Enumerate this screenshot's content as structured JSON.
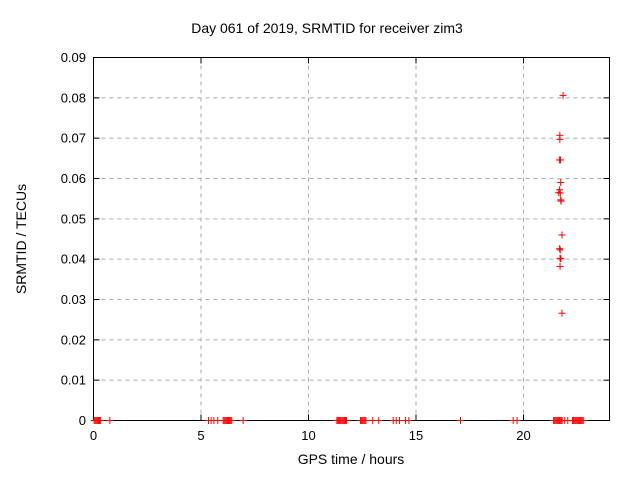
{
  "title": "Day 061 of 2019, SRMTID for receiver zim3",
  "chart_data": {
    "type": "scatter",
    "title": "Day 061 of 2019, SRMTID for receiver zim3",
    "xlabel": "GPS time / hours",
    "ylabel": "SRMTID / TECUs",
    "xlim": [
      0,
      24
    ],
    "ylim": [
      0,
      0.09
    ],
    "grid": true,
    "legend": "none",
    "marker": "plus",
    "marker_color": "#ff0000",
    "grid_color": "#aaaaaa",
    "axis_color": "#000000",
    "xticks": [
      {
        "v": 0,
        "label": "0"
      },
      {
        "v": 5,
        "label": "5"
      },
      {
        "v": 10,
        "label": "10"
      },
      {
        "v": 15,
        "label": "15"
      },
      {
        "v": 20,
        "label": "20"
      }
    ],
    "yticks": [
      {
        "v": 0,
        "label": "0"
      },
      {
        "v": 0.01,
        "label": "0.01"
      },
      {
        "v": 0.02,
        "label": "0.02"
      },
      {
        "v": 0.03,
        "label": "0.03"
      },
      {
        "v": 0.04,
        "label": "0.04"
      },
      {
        "v": 0.05,
        "label": "0.05"
      },
      {
        "v": 0.06,
        "label": "0.06"
      },
      {
        "v": 0.07,
        "label": "0.07"
      },
      {
        "v": 0.08,
        "label": "0.08"
      },
      {
        "v": 0.09,
        "label": "0.09"
      }
    ],
    "series": [
      {
        "name": "SRMTID",
        "points": [
          [
            21.84,
            0.0806
          ],
          [
            21.69,
            0.0707
          ],
          [
            21.69,
            0.0697
          ],
          [
            21.67,
            0.0646
          ],
          [
            21.72,
            0.0646
          ],
          [
            21.73,
            0.059
          ],
          [
            21.68,
            0.0572
          ],
          [
            21.64,
            0.0565
          ],
          [
            21.71,
            0.0564
          ],
          [
            21.73,
            0.0547
          ],
          [
            21.75,
            0.0544
          ],
          [
            21.79,
            0.046
          ],
          [
            21.68,
            0.0426
          ],
          [
            21.71,
            0.0423
          ],
          [
            21.7,
            0.0402
          ],
          [
            21.74,
            0.0401
          ],
          [
            21.7,
            0.0382
          ],
          [
            21.79,
            0.0266
          ],
          [
            0.03,
            0
          ],
          [
            0.08,
            0
          ],
          [
            0.13,
            0
          ],
          [
            0.18,
            0
          ],
          [
            0.23,
            0
          ],
          [
            0.28,
            0
          ],
          [
            0.33,
            0
          ],
          [
            0.76,
            0
          ],
          [
            5.35,
            0
          ],
          [
            5.47,
            0
          ],
          [
            5.6,
            0
          ],
          [
            5.78,
            0
          ],
          [
            6.03,
            0
          ],
          [
            6.08,
            0
          ],
          [
            6.13,
            0
          ],
          [
            6.18,
            0
          ],
          [
            6.23,
            0
          ],
          [
            6.28,
            0
          ],
          [
            6.33,
            0
          ],
          [
            6.38,
            0
          ],
          [
            6.43,
            0
          ],
          [
            6.96,
            0
          ],
          [
            11.32,
            0
          ],
          [
            11.37,
            0
          ],
          [
            11.42,
            0
          ],
          [
            11.47,
            0
          ],
          [
            11.52,
            0
          ],
          [
            11.57,
            0
          ],
          [
            11.62,
            0
          ],
          [
            11.67,
            0
          ],
          [
            11.72,
            0
          ],
          [
            11.77,
            0
          ],
          [
            12.42,
            0
          ],
          [
            12.47,
            0
          ],
          [
            12.52,
            0
          ],
          [
            12.57,
            0
          ],
          [
            12.62,
            0
          ],
          [
            12.67,
            0
          ],
          [
            12.99,
            0
          ],
          [
            13.27,
            0
          ],
          [
            13.94,
            0
          ],
          [
            14.08,
            0
          ],
          [
            14.23,
            0
          ],
          [
            14.51,
            0
          ],
          [
            14.67,
            0
          ],
          [
            17.07,
            0
          ],
          [
            19.52,
            0
          ],
          [
            19.7,
            0
          ],
          [
            21.4,
            0
          ],
          [
            21.45,
            0
          ],
          [
            21.5,
            0
          ],
          [
            21.55,
            0
          ],
          [
            21.6,
            0
          ],
          [
            21.65,
            0
          ],
          [
            21.7,
            0
          ],
          [
            21.75,
            0
          ],
          [
            21.8,
            0
          ],
          [
            21.92,
            0
          ],
          [
            22.06,
            0
          ],
          [
            22.28,
            0
          ],
          [
            22.33,
            0
          ],
          [
            22.38,
            0
          ],
          [
            22.43,
            0
          ],
          [
            22.48,
            0
          ],
          [
            22.53,
            0
          ],
          [
            22.58,
            0
          ],
          [
            22.63,
            0
          ],
          [
            22.68,
            0
          ],
          [
            22.73,
            0
          ],
          [
            22.78,
            0
          ]
        ]
      }
    ]
  }
}
